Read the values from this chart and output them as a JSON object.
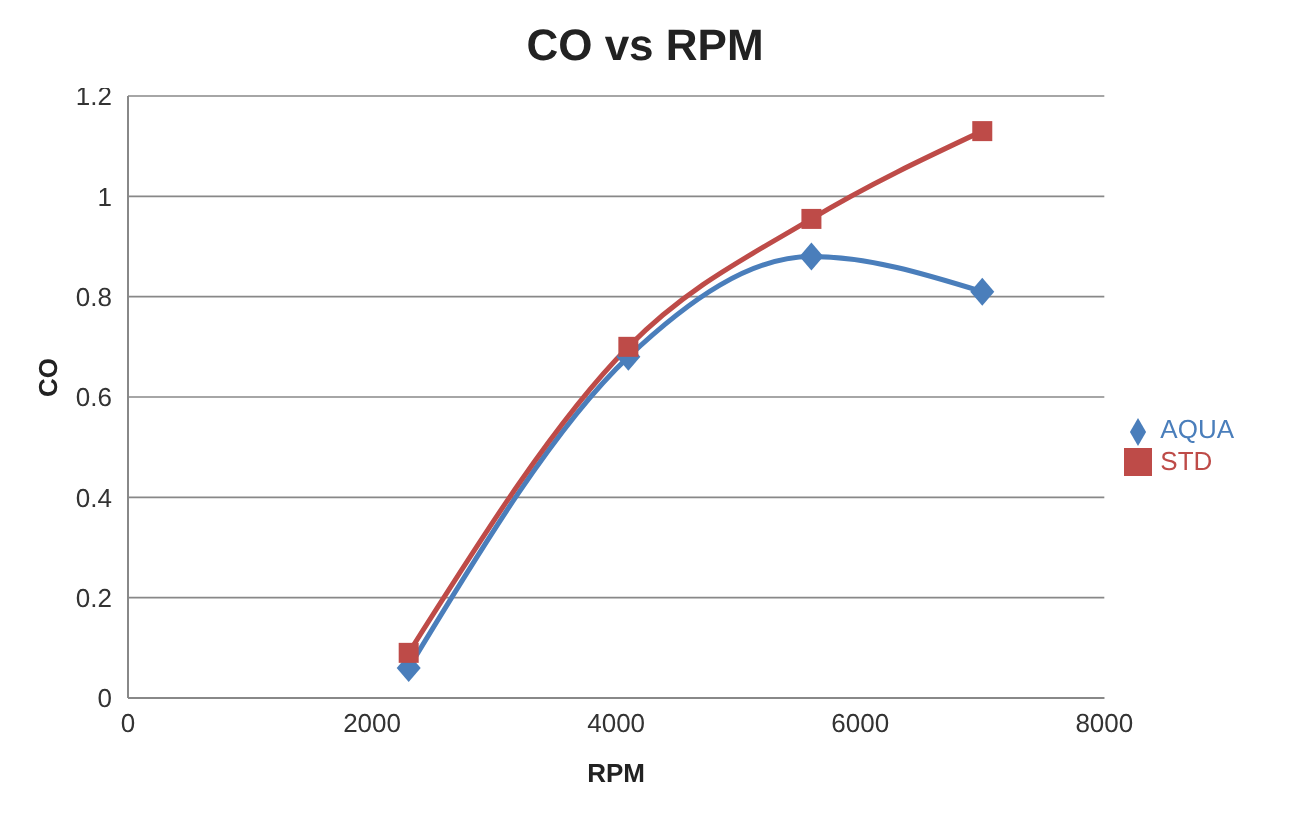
{
  "chart_data": {
    "type": "line",
    "title": "CO vs RPM",
    "xlabel": "RPM",
    "ylabel": "CO",
    "x": [
      2300,
      4100,
      5600,
      7000
    ],
    "series": [
      {
        "name": "AQUA",
        "color": "#4a7ebb",
        "values": [
          0.06,
          0.68,
          0.88,
          0.81
        ],
        "marker": "diamond"
      },
      {
        "name": "STD",
        "color": "#be4b48",
        "values": [
          0.09,
          0.7,
          0.955,
          1.13
        ],
        "marker": "square"
      }
    ],
    "xlim": [
      0,
      8000
    ],
    "xticks": [
      0,
      2000,
      4000,
      6000,
      8000
    ],
    "ylim": [
      0,
      1.2
    ],
    "yticks": [
      0,
      0.2,
      0.4,
      0.6,
      0.8,
      1,
      1.2
    ],
    "grid": "y",
    "legend": "right",
    "line_style": "solid"
  }
}
